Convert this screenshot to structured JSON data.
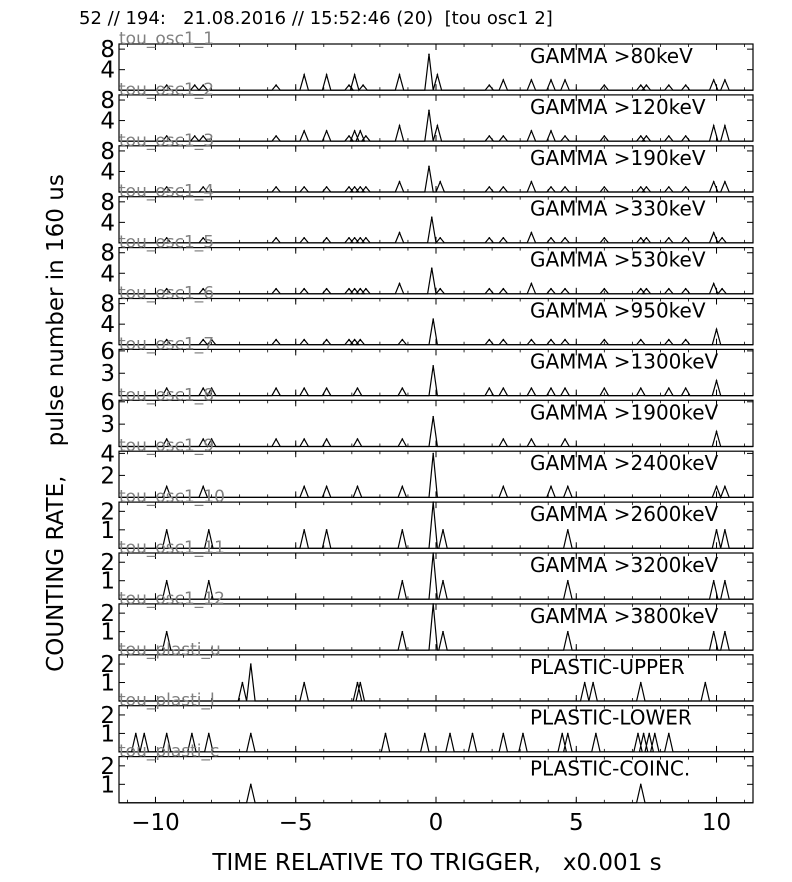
{
  "header": "52 // 194:   21.08.2016 // 15:52:46 (20)  [tou osc1 2]",
  "ylabel": "COUNTING RATE,    pulse number in 160 us",
  "xlabel": "TIME RELATIVE TO TRIGGER,   x0.001 s",
  "chart_data": {
    "type": "line",
    "xlim": [
      -11.3,
      11.3
    ],
    "xticks": [
      -10,
      -5,
      0,
      5,
      10
    ],
    "xtick_labels": [
      "−10",
      "−5",
      "0",
      "5",
      "10"
    ],
    "line_color": "#000000",
    "channel_label_color": "#808080",
    "panels": [
      {
        "channel": "tou_osc1_1",
        "title": "GAMMA >80keV",
        "ylim": [
          0,
          9
        ],
        "yticks": [
          4,
          8
        ],
        "events": [
          [
            -9.6,
            1
          ],
          [
            -8.6,
            1
          ],
          [
            -8.3,
            1
          ],
          [
            -5.7,
            1
          ],
          [
            -4.7,
            3
          ],
          [
            -3.9,
            3
          ],
          [
            -3.1,
            1
          ],
          [
            -2.9,
            3
          ],
          [
            -2.6,
            1
          ],
          [
            -1.3,
            3
          ],
          [
            -0.25,
            7
          ],
          [
            0.05,
            3
          ],
          [
            1.9,
            1
          ],
          [
            2.4,
            2
          ],
          [
            3.4,
            2
          ],
          [
            4.1,
            2
          ],
          [
            4.6,
            2
          ],
          [
            6.0,
            1
          ],
          [
            7.3,
            1
          ],
          [
            7.5,
            1
          ],
          [
            8.3,
            1
          ],
          [
            8.9,
            1
          ],
          [
            9.9,
            2
          ],
          [
            10.3,
            2
          ]
        ]
      },
      {
        "channel": "tou_osc1_2",
        "title": "GAMMA >120keV",
        "ylim": [
          0,
          9
        ],
        "yticks": [
          4,
          8
        ],
        "events": [
          [
            -9.6,
            1
          ],
          [
            -8.6,
            1
          ],
          [
            -8.3,
            1
          ],
          [
            -5.7,
            1
          ],
          [
            -4.7,
            2
          ],
          [
            -3.9,
            2
          ],
          [
            -3.1,
            1
          ],
          [
            -2.9,
            2
          ],
          [
            -2.7,
            2
          ],
          [
            -2.5,
            1
          ],
          [
            -1.3,
            3
          ],
          [
            -0.25,
            6
          ],
          [
            0.05,
            3
          ],
          [
            1.9,
            1
          ],
          [
            2.4,
            1
          ],
          [
            3.4,
            2
          ],
          [
            4.1,
            2
          ],
          [
            4.6,
            1
          ],
          [
            6.0,
            1
          ],
          [
            7.3,
            1
          ],
          [
            7.5,
            1
          ],
          [
            8.3,
            1
          ],
          [
            8.9,
            1
          ],
          [
            9.9,
            3
          ],
          [
            10.3,
            3
          ]
        ]
      },
      {
        "channel": "tou_osc1_3",
        "title": "GAMMA >190keV",
        "ylim": [
          0,
          9
        ],
        "yticks": [
          4,
          8
        ],
        "events": [
          [
            -9.6,
            1
          ],
          [
            -8.3,
            1
          ],
          [
            -5.7,
            1
          ],
          [
            -4.7,
            1
          ],
          [
            -3.9,
            1
          ],
          [
            -3.1,
            1
          ],
          [
            -2.9,
            1
          ],
          [
            -2.7,
            1
          ],
          [
            -2.5,
            1
          ],
          [
            -1.3,
            2
          ],
          [
            -0.25,
            5
          ],
          [
            0.15,
            2
          ],
          [
            1.9,
            1
          ],
          [
            2.4,
            1
          ],
          [
            3.4,
            2
          ],
          [
            4.1,
            1
          ],
          [
            4.6,
            1
          ],
          [
            6.0,
            1
          ],
          [
            7.3,
            1
          ],
          [
            7.5,
            1
          ],
          [
            8.3,
            1
          ],
          [
            8.9,
            1
          ],
          [
            9.9,
            2
          ],
          [
            10.3,
            2
          ]
        ]
      },
      {
        "channel": "tou_osc1_4",
        "title": "GAMMA >330keV",
        "ylim": [
          0,
          9
        ],
        "yticks": [
          4,
          8
        ],
        "events": [
          [
            -9.6,
            1
          ],
          [
            -8.3,
            1
          ],
          [
            -5.7,
            1
          ],
          [
            -4.7,
            1
          ],
          [
            -3.9,
            1
          ],
          [
            -3.1,
            1
          ],
          [
            -2.9,
            1
          ],
          [
            -2.7,
            1
          ],
          [
            -2.5,
            1
          ],
          [
            -1.3,
            2
          ],
          [
            -0.15,
            5
          ],
          [
            0.15,
            1
          ],
          [
            1.9,
            1
          ],
          [
            2.4,
            1
          ],
          [
            3.4,
            2
          ],
          [
            4.1,
            1
          ],
          [
            4.6,
            1
          ],
          [
            6.0,
            1
          ],
          [
            7.3,
            1
          ],
          [
            7.5,
            1
          ],
          [
            8.3,
            1
          ],
          [
            8.9,
            1
          ],
          [
            9.9,
            2
          ],
          [
            10.2,
            1
          ]
        ]
      },
      {
        "channel": "tou_osc1_5",
        "title": "GAMMA >530keV",
        "ylim": [
          0,
          9
        ],
        "yticks": [
          4,
          8
        ],
        "events": [
          [
            -9.6,
            1
          ],
          [
            -8.3,
            1
          ],
          [
            -5.7,
            1
          ],
          [
            -4.7,
            1
          ],
          [
            -3.9,
            1
          ],
          [
            -3.1,
            1
          ],
          [
            -2.9,
            1
          ],
          [
            -2.7,
            1
          ],
          [
            -2.5,
            1
          ],
          [
            -1.3,
            2
          ],
          [
            -0.15,
            5
          ],
          [
            0.15,
            1
          ],
          [
            1.9,
            1
          ],
          [
            2.4,
            1
          ],
          [
            3.4,
            2
          ],
          [
            4.1,
            1
          ],
          [
            4.6,
            1
          ],
          [
            6.0,
            1
          ],
          [
            7.3,
            1
          ],
          [
            7.5,
            1
          ],
          [
            8.3,
            1
          ],
          [
            8.9,
            1
          ],
          [
            9.9,
            2
          ],
          [
            10.2,
            1
          ]
        ]
      },
      {
        "channel": "tou_osc1_6",
        "title": "GAMMA >950keV",
        "ylim": [
          0,
          9
        ],
        "yticks": [
          4,
          8
        ],
        "events": [
          [
            -9.6,
            1
          ],
          [
            -8.3,
            1
          ],
          [
            -8.0,
            1
          ],
          [
            -5.7,
            1
          ],
          [
            -4.7,
            1
          ],
          [
            -3.9,
            1
          ],
          [
            -3.1,
            1
          ],
          [
            -2.9,
            1
          ],
          [
            -2.7,
            1
          ],
          [
            -1.2,
            1
          ],
          [
            -0.1,
            5
          ],
          [
            1.9,
            1
          ],
          [
            2.4,
            1
          ],
          [
            3.4,
            1
          ],
          [
            4.1,
            1
          ],
          [
            4.6,
            1
          ],
          [
            6.0,
            1
          ],
          [
            7.3,
            1
          ],
          [
            8.3,
            1
          ],
          [
            8.9,
            1
          ],
          [
            10.0,
            3
          ]
        ]
      },
      {
        "channel": "tou_osc1_7",
        "title": "GAMMA >1300keV",
        "ylim": [
          0,
          6.2
        ],
        "yticks": [
          3,
          6
        ],
        "events": [
          [
            -9.6,
            1
          ],
          [
            -8.3,
            1
          ],
          [
            -8.0,
            1
          ],
          [
            -5.7,
            1
          ],
          [
            -4.7,
            1
          ],
          [
            -3.9,
            1
          ],
          [
            -2.8,
            1
          ],
          [
            -1.2,
            1
          ],
          [
            -0.1,
            4
          ],
          [
            1.9,
            1
          ],
          [
            2.4,
            1
          ],
          [
            3.4,
            1
          ],
          [
            4.1,
            1
          ],
          [
            4.6,
            1
          ],
          [
            6.0,
            1
          ],
          [
            7.3,
            1
          ],
          [
            8.3,
            1
          ],
          [
            8.9,
            1
          ],
          [
            10.0,
            2
          ]
        ]
      },
      {
        "channel": "tou_osc1_8",
        "title": "GAMMA >1900keV",
        "ylim": [
          0,
          6.2
        ],
        "yticks": [
          3,
          6
        ],
        "events": [
          [
            -9.6,
            1
          ],
          [
            -8.3,
            1
          ],
          [
            -8.0,
            1
          ],
          [
            -5.7,
            1
          ],
          [
            -4.7,
            1
          ],
          [
            -3.9,
            1
          ],
          [
            -2.8,
            1
          ],
          [
            -1.2,
            1
          ],
          [
            -0.1,
            4
          ],
          [
            2.4,
            1
          ],
          [
            3.4,
            1
          ],
          [
            4.6,
            1
          ],
          [
            10.0,
            2
          ]
        ]
      },
      {
        "channel": "tou_osc1_9",
        "title": "GAMMA >2400keV",
        "ylim": [
          0,
          4.2
        ],
        "yticks": [
          2,
          4
        ],
        "events": [
          [
            -9.6,
            1
          ],
          [
            -8.3,
            1
          ],
          [
            -4.7,
            1
          ],
          [
            -3.9,
            1
          ],
          [
            -2.8,
            1
          ],
          [
            -1.2,
            1
          ],
          [
            -0.1,
            4
          ],
          [
            2.4,
            1
          ],
          [
            4.1,
            1
          ],
          [
            4.7,
            1
          ],
          [
            10.0,
            1
          ],
          [
            10.3,
            1
          ]
        ]
      },
      {
        "channel": "tou_osc1_10",
        "title": "GAMMA >2600keV",
        "ylim": [
          0,
          2.5
        ],
        "yticks": [
          1,
          2
        ],
        "events": [
          [
            -9.6,
            1
          ],
          [
            -8.1,
            1
          ],
          [
            -4.7,
            1
          ],
          [
            -3.9,
            1
          ],
          [
            -1.2,
            1
          ],
          [
            -0.1,
            3
          ],
          [
            0.25,
            1
          ],
          [
            4.7,
            1
          ],
          [
            10.0,
            1
          ],
          [
            10.3,
            1
          ]
        ]
      },
      {
        "channel": "tou_osc1_11",
        "title": "GAMMA >3200keV",
        "ylim": [
          0,
          2.5
        ],
        "yticks": [
          1,
          2
        ],
        "events": [
          [
            -9.6,
            1
          ],
          [
            -8.1,
            1
          ],
          [
            -1.2,
            1
          ],
          [
            -0.1,
            3
          ],
          [
            0.25,
            1
          ],
          [
            4.7,
            1
          ],
          [
            9.9,
            1
          ],
          [
            10.3,
            1
          ]
        ]
      },
      {
        "channel": "tou_osc1_12",
        "title": "GAMMA >3800keV",
        "ylim": [
          0,
          2.5
        ],
        "yticks": [
          1,
          2
        ],
        "events": [
          [
            -9.6,
            1
          ],
          [
            -1.2,
            1
          ],
          [
            -0.1,
            3
          ],
          [
            0.25,
            1
          ],
          [
            4.7,
            1
          ],
          [
            9.9,
            1
          ],
          [
            10.3,
            1
          ]
        ]
      },
      {
        "channel": "tou_plasti_u",
        "title": "PLASTIC-UPPER",
        "ylim": [
          0,
          2.5
        ],
        "yticks": [
          1,
          2
        ],
        "events": [
          [
            -6.9,
            1
          ],
          [
            -6.6,
            2
          ],
          [
            -4.7,
            1
          ],
          [
            -2.8,
            1
          ],
          [
            -2.7,
            1
          ],
          [
            5.3,
            1
          ],
          [
            5.6,
            1
          ],
          [
            7.3,
            1
          ],
          [
            9.6,
            1
          ]
        ]
      },
      {
        "channel": "tou_plasti_l",
        "title": "PLASTIC-LOWER",
        "ylim": [
          0,
          2.5
        ],
        "yticks": [
          1,
          2
        ],
        "events": [
          [
            -10.7,
            1
          ],
          [
            -10.4,
            1
          ],
          [
            -9.6,
            1
          ],
          [
            -8.7,
            1
          ],
          [
            -8.1,
            1
          ],
          [
            -6.6,
            1
          ],
          [
            -1.8,
            1
          ],
          [
            -0.4,
            1
          ],
          [
            0.5,
            1
          ],
          [
            1.3,
            1
          ],
          [
            2.4,
            1
          ],
          [
            3.1,
            1
          ],
          [
            4.5,
            1
          ],
          [
            4.7,
            1
          ],
          [
            5.7,
            1
          ],
          [
            7.2,
            1
          ],
          [
            7.4,
            1
          ],
          [
            7.6,
            1
          ],
          [
            7.8,
            1
          ],
          [
            8.3,
            1
          ]
        ]
      },
      {
        "channel": "tou_plasti_c",
        "title": "PLASTIC-COINC.",
        "ylim": [
          0,
          2.5
        ],
        "yticks": [
          1,
          2
        ],
        "events": [
          [
            -6.6,
            1
          ],
          [
            7.3,
            1
          ]
        ]
      }
    ]
  }
}
